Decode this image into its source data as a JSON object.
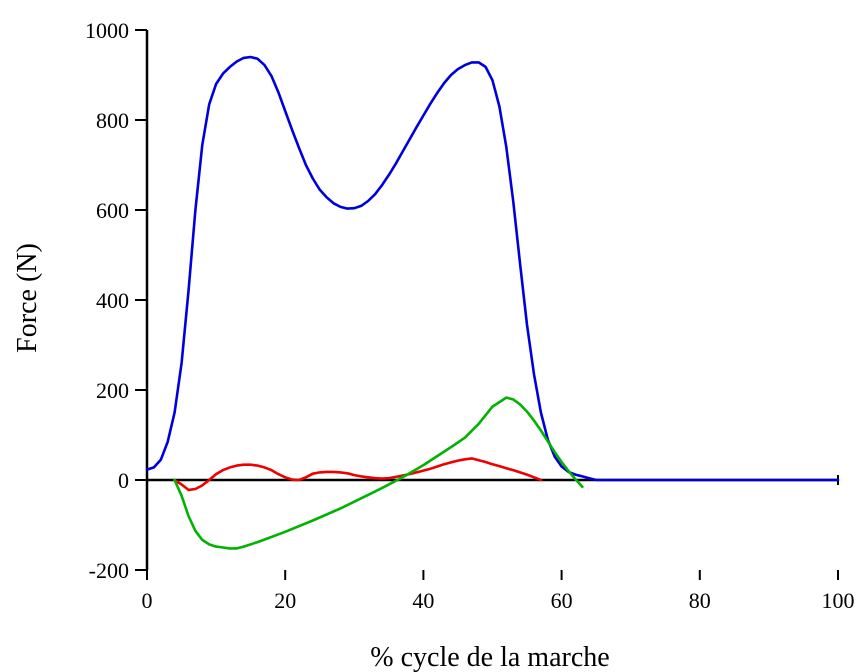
{
  "chart_data": {
    "type": "line",
    "title": "",
    "xlabel": "% cycle de la marche",
    "ylabel": "Force (N)",
    "xlim": [
      0,
      100
    ],
    "ylim": [
      -200,
      1000
    ],
    "x_ticks": [
      0,
      20,
      40,
      60,
      80,
      100
    ],
    "y_ticks": [
      -200,
      0,
      200,
      400,
      600,
      800,
      1000
    ],
    "x_tick_labels": [
      "0",
      "20",
      "40",
      "60",
      "80",
      "100"
    ],
    "y_tick_labels": [
      "-200",
      "0",
      "200",
      "400",
      "600",
      "800",
      "1000"
    ],
    "grid": false,
    "legend": "none",
    "series": [
      {
        "color": "#0000dd",
        "points": [
          [
            0,
            23
          ],
          [
            1,
            28
          ],
          [
            2,
            45
          ],
          [
            3,
            85
          ],
          [
            4,
            150
          ],
          [
            5,
            260
          ],
          [
            6,
            420
          ],
          [
            7,
            600
          ],
          [
            8,
            745
          ],
          [
            9,
            835
          ],
          [
            10,
            880
          ],
          [
            11,
            903
          ],
          [
            12,
            918
          ],
          [
            13,
            930
          ],
          [
            14,
            938
          ],
          [
            15,
            940
          ],
          [
            16,
            936
          ],
          [
            17,
            922
          ],
          [
            18,
            898
          ],
          [
            19,
            862
          ],
          [
            20,
            820
          ],
          [
            21,
            778
          ],
          [
            22,
            738
          ],
          [
            23,
            700
          ],
          [
            24,
            670
          ],
          [
            25,
            645
          ],
          [
            26,
            628
          ],
          [
            27,
            615
          ],
          [
            28,
            607
          ],
          [
            29,
            603
          ],
          [
            30,
            604
          ],
          [
            31,
            609
          ],
          [
            32,
            620
          ],
          [
            33,
            635
          ],
          [
            34,
            655
          ],
          [
            35,
            678
          ],
          [
            36,
            703
          ],
          [
            37,
            730
          ],
          [
            38,
            757
          ],
          [
            39,
            784
          ],
          [
            40,
            810
          ],
          [
            41,
            836
          ],
          [
            42,
            860
          ],
          [
            43,
            882
          ],
          [
            44,
            900
          ],
          [
            45,
            913
          ],
          [
            46,
            922
          ],
          [
            47,
            928
          ],
          [
            48,
            928
          ],
          [
            49,
            918
          ],
          [
            50,
            888
          ],
          [
            51,
            830
          ],
          [
            52,
            740
          ],
          [
            53,
            620
          ],
          [
            54,
            480
          ],
          [
            55,
            345
          ],
          [
            56,
            235
          ],
          [
            57,
            150
          ],
          [
            58,
            90
          ],
          [
            59,
            52
          ],
          [
            60,
            30
          ],
          [
            61,
            18
          ],
          [
            62,
            12
          ],
          [
            63,
            8
          ],
          [
            64,
            4
          ],
          [
            65,
            0
          ],
          [
            100,
            0
          ]
        ]
      },
      {
        "color": "#ee0000",
        "points": [
          [
            4,
            0
          ],
          [
            5,
            -10
          ],
          [
            6,
            -22
          ],
          [
            7,
            -20
          ],
          [
            8,
            -12
          ],
          [
            9,
            0
          ],
          [
            10,
            13
          ],
          [
            11,
            22
          ],
          [
            12,
            28
          ],
          [
            13,
            32
          ],
          [
            14,
            34
          ],
          [
            15,
            34
          ],
          [
            16,
            32
          ],
          [
            17,
            28
          ],
          [
            18,
            22
          ],
          [
            19,
            13
          ],
          [
            20,
            6
          ],
          [
            21,
            1
          ],
          [
            22,
            0
          ],
          [
            23,
            6
          ],
          [
            24,
            14
          ],
          [
            25,
            17
          ],
          [
            26,
            18
          ],
          [
            27,
            18
          ],
          [
            28,
            17
          ],
          [
            29,
            15
          ],
          [
            30,
            11
          ],
          [
            31,
            8
          ],
          [
            32,
            6
          ],
          [
            33,
            4
          ],
          [
            34,
            3
          ],
          [
            35,
            4
          ],
          [
            36,
            7
          ],
          [
            37,
            10
          ],
          [
            38,
            13
          ],
          [
            39,
            17
          ],
          [
            40,
            21
          ],
          [
            41,
            25
          ],
          [
            42,
            30
          ],
          [
            43,
            35
          ],
          [
            44,
            39
          ],
          [
            45,
            43
          ],
          [
            46,
            46
          ],
          [
            47,
            48
          ],
          [
            48,
            44
          ],
          [
            49,
            40
          ],
          [
            50,
            35
          ],
          [
            51,
            31
          ],
          [
            52,
            26
          ],
          [
            53,
            22
          ],
          [
            54,
            17
          ],
          [
            55,
            12
          ],
          [
            56,
            6
          ],
          [
            57,
            0
          ]
        ]
      },
      {
        "color": "#00b300",
        "points": [
          [
            4,
            0
          ],
          [
            5,
            -35
          ],
          [
            6,
            -80
          ],
          [
            7,
            -113
          ],
          [
            8,
            -133
          ],
          [
            9,
            -143
          ],
          [
            10,
            -148
          ],
          [
            11,
            -150
          ],
          [
            12,
            -152
          ],
          [
            13,
            -152
          ],
          [
            14,
            -148
          ],
          [
            16,
            -138
          ],
          [
            20,
            -115
          ],
          [
            24,
            -90
          ],
          [
            28,
            -63
          ],
          [
            32,
            -33
          ],
          [
            34,
            -18
          ],
          [
            36,
            -2
          ],
          [
            38,
            15
          ],
          [
            40,
            33
          ],
          [
            42,
            53
          ],
          [
            44,
            73
          ],
          [
            46,
            94
          ],
          [
            48,
            125
          ],
          [
            50,
            163
          ],
          [
            52,
            183
          ],
          [
            53,
            179
          ],
          [
            54,
            168
          ],
          [
            55,
            152
          ],
          [
            56,
            132
          ],
          [
            57,
            110
          ],
          [
            58,
            86
          ],
          [
            59,
            62
          ],
          [
            60,
            40
          ],
          [
            61,
            20
          ],
          [
            62,
            2
          ],
          [
            63,
            -15
          ]
        ]
      }
    ]
  }
}
